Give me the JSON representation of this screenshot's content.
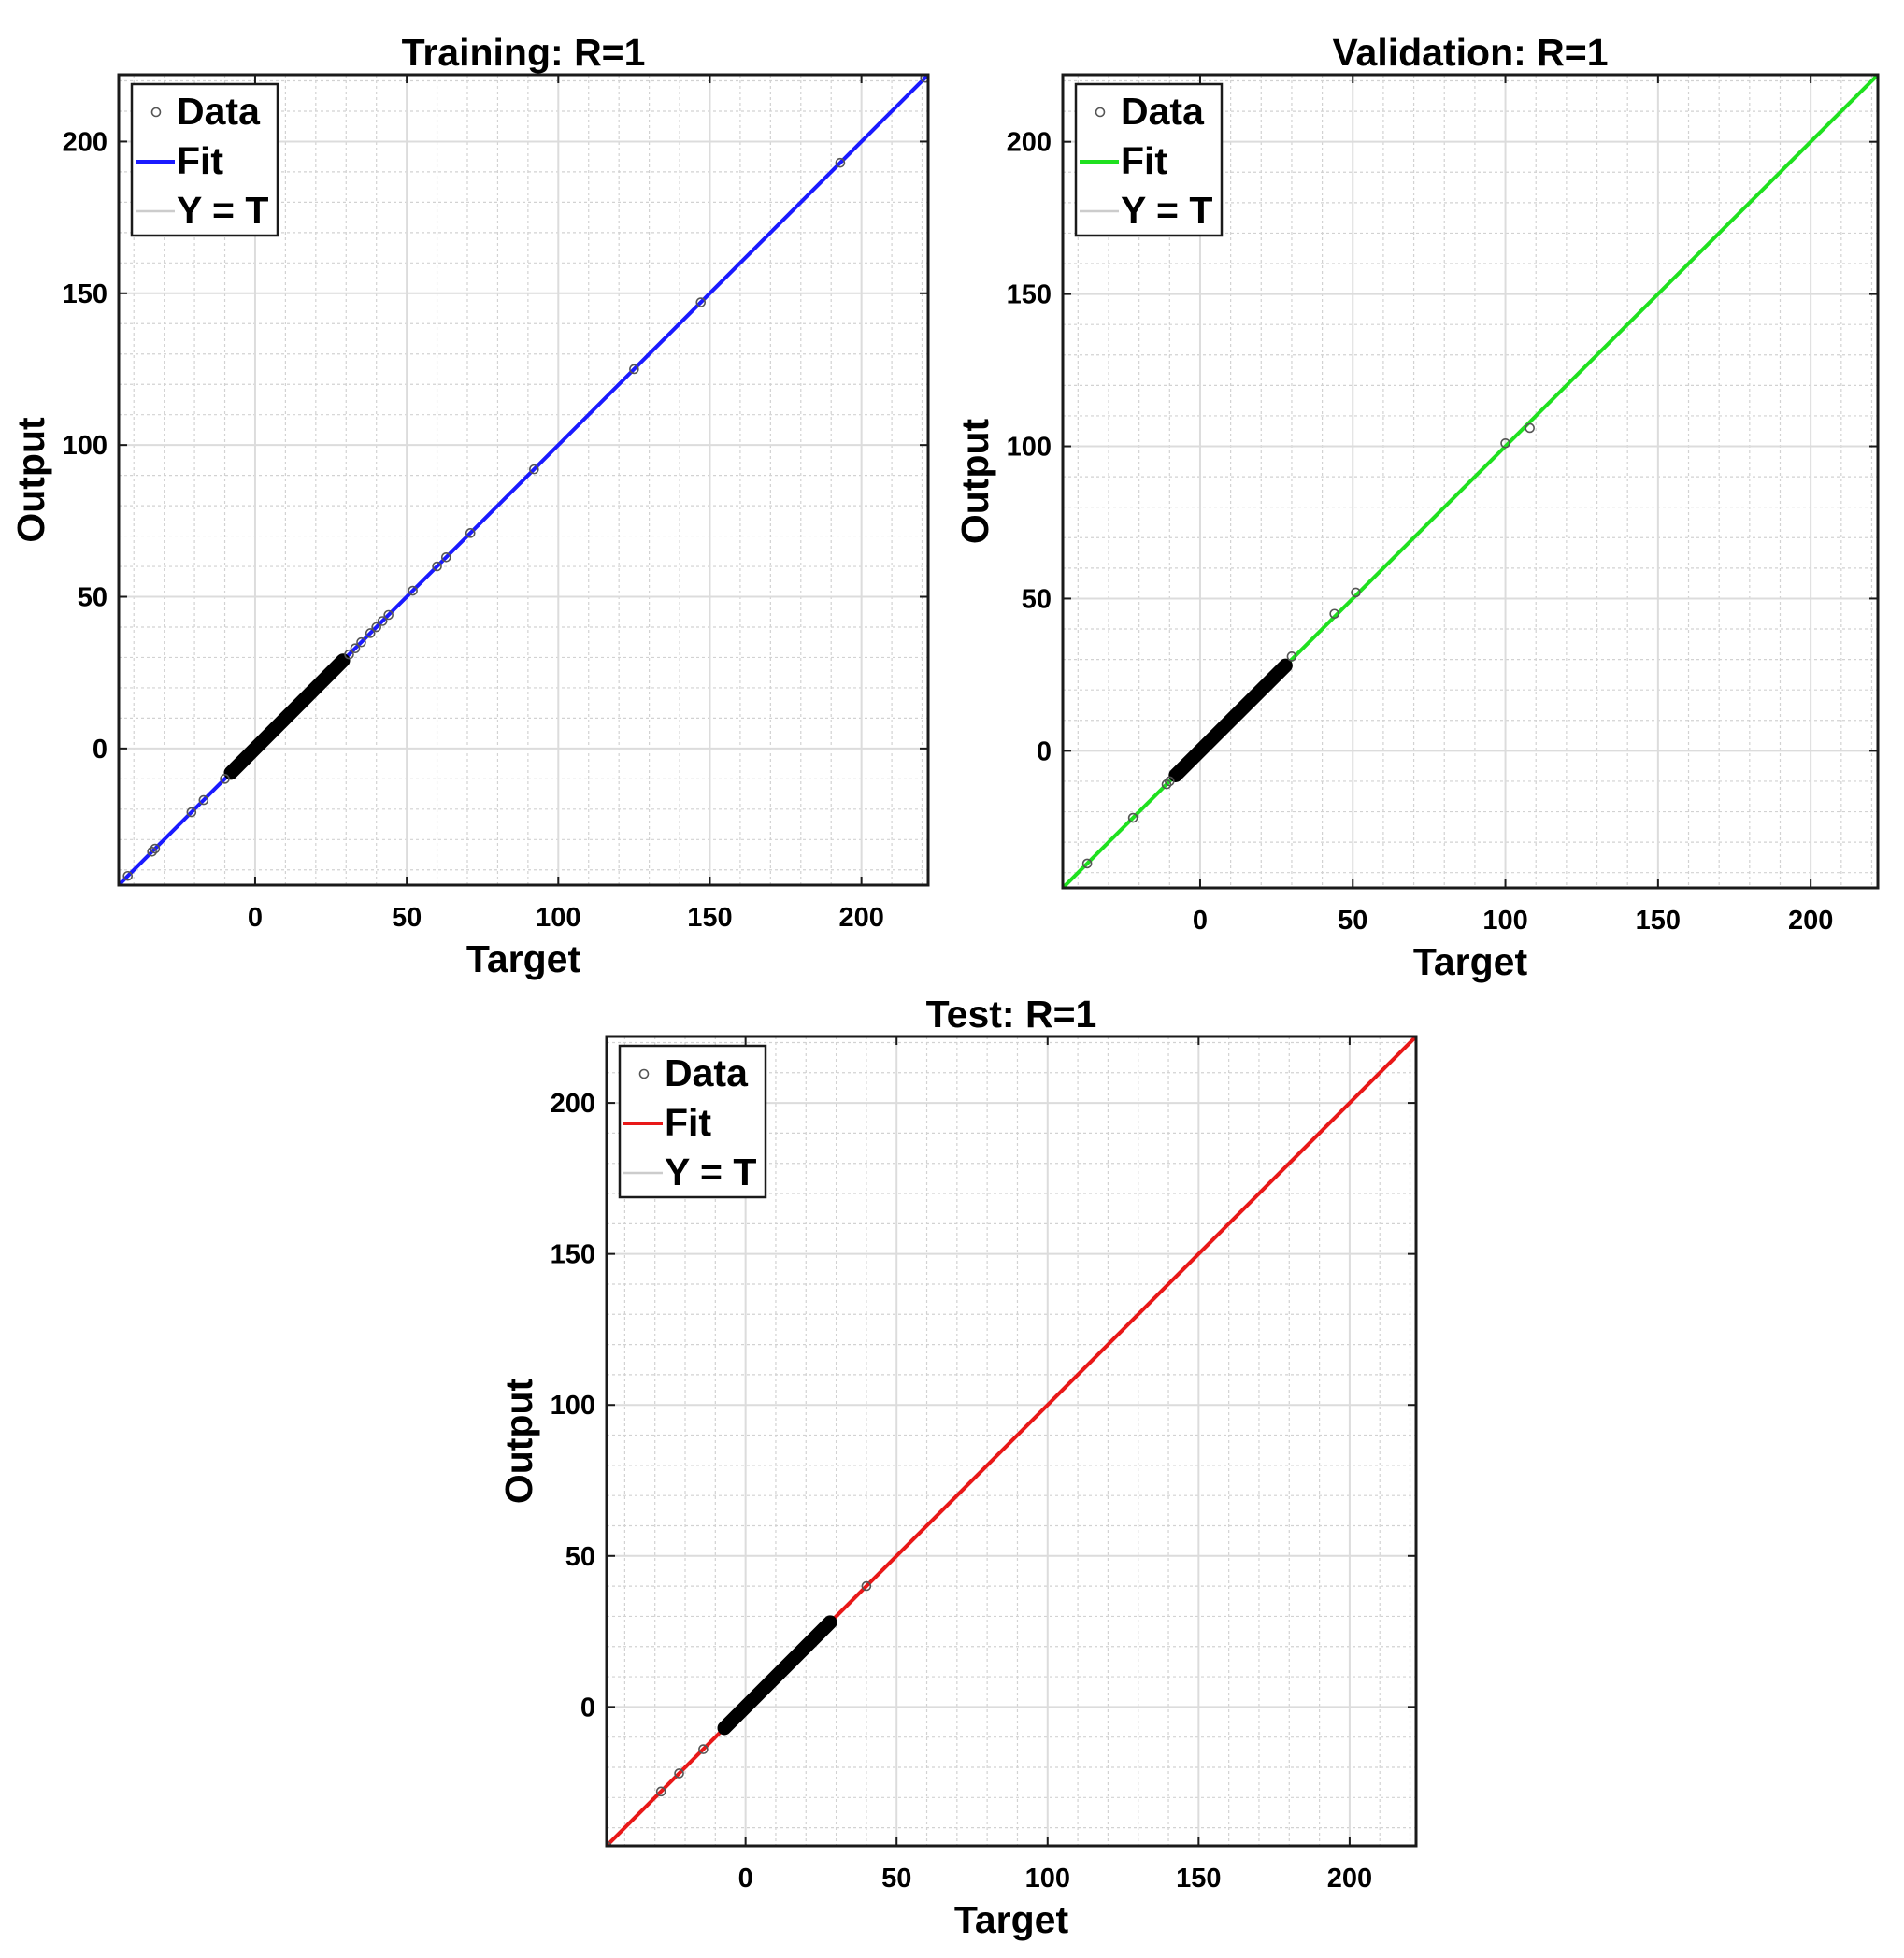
{
  "chart_data": [
    {
      "type": "scatter",
      "title": "Training: R=1",
      "xlabel": "Target",
      "ylabel": "Output",
      "xlim": [
        -45,
        222
      ],
      "ylim": [
        -45,
        222
      ],
      "xticks": [
        0,
        50,
        100,
        150,
        200
      ],
      "yticks": [
        0,
        50,
        100,
        150,
        200
      ],
      "grid": true,
      "minor_grid": true,
      "legend_position": "top-left",
      "fit_color": "#1a1aff",
      "series": [
        {
          "name": "Data",
          "style": "markers",
          "color": "#000000",
          "x": [
            -42,
            -34,
            -33,
            -21,
            -17,
            -10,
            31,
            33,
            35,
            38,
            40,
            42,
            44,
            52,
            60,
            63,
            71,
            92,
            125,
            147,
            193,
            221
          ],
          "y": [
            -42,
            -34,
            -33,
            -21,
            -17,
            -10,
            31,
            33,
            35,
            38,
            40,
            42,
            44,
            52,
            60,
            63,
            71,
            92,
            125,
            147,
            193,
            221
          ],
          "dense_range": [
            -8,
            29
          ]
        },
        {
          "name": "Fit",
          "style": "line",
          "color": "#1a1aff",
          "x": [
            -45,
            222
          ],
          "y": [
            -45,
            222
          ]
        },
        {
          "name": "Y = T",
          "style": "line",
          "color": "#cccccc",
          "x": [
            -45,
            222
          ],
          "y": [
            -45,
            222
          ]
        }
      ]
    },
    {
      "type": "scatter",
      "title": "Validation: R=1",
      "xlabel": "Target",
      "ylabel": "Output",
      "xlim": [
        -45,
        222
      ],
      "ylim": [
        -45,
        222
      ],
      "xticks": [
        0,
        50,
        100,
        150,
        200
      ],
      "yticks": [
        0,
        50,
        100,
        150,
        200
      ],
      "grid": true,
      "minor_grid": true,
      "legend_position": "top-left",
      "fit_color": "#1fe01f",
      "series": [
        {
          "name": "Data",
          "style": "markers",
          "color": "#000000",
          "x": [
            -37,
            -22,
            -11,
            -10,
            30,
            44,
            51,
            100,
            108
          ],
          "y": [
            -37,
            -22,
            -11,
            -10,
            31,
            45,
            52,
            101,
            106
          ],
          "dense_range": [
            -8,
            28
          ]
        },
        {
          "name": "Fit",
          "style": "line",
          "color": "#1fe01f",
          "x": [
            -45,
            222
          ],
          "y": [
            -45,
            222
          ]
        },
        {
          "name": "Y = T",
          "style": "line",
          "color": "#cccccc",
          "x": [
            -45,
            222
          ],
          "y": [
            -45,
            222
          ]
        }
      ]
    },
    {
      "type": "scatter",
      "title": "Test: R=1",
      "xlabel": "Target",
      "ylabel": "Output",
      "xlim": [
        -46,
        222
      ],
      "ylim": [
        -46,
        222
      ],
      "xticks": [
        0,
        50,
        100,
        150,
        200
      ],
      "yticks": [
        0,
        50,
        100,
        150,
        200
      ],
      "grid": true,
      "minor_grid": true,
      "legend_position": "top-left",
      "fit_color": "#e81818",
      "series": [
        {
          "name": "Data",
          "style": "markers",
          "color": "#000000",
          "x": [
            -46,
            -28,
            -22,
            -14,
            40
          ],
          "y": [
            -46,
            -28,
            -22,
            -14,
            40
          ],
          "dense_range": [
            -7,
            28
          ]
        },
        {
          "name": "Fit",
          "style": "line",
          "color": "#e81818",
          "x": [
            -46,
            222
          ],
          "y": [
            -46,
            222
          ]
        },
        {
          "name": "Y = T",
          "style": "line",
          "color": "#cccccc",
          "x": [
            -46,
            222
          ],
          "y": [
            -46,
            222
          ]
        }
      ]
    }
  ]
}
